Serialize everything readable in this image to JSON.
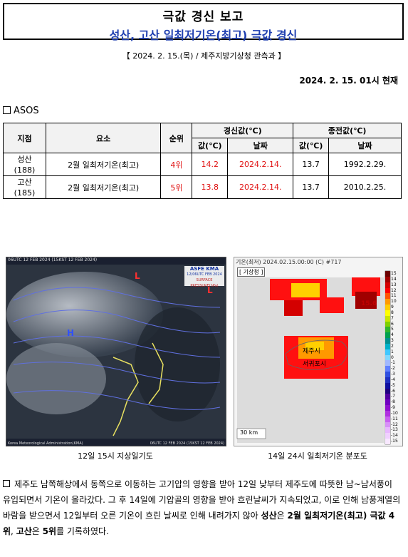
{
  "title": {
    "main": "극값 경신 보고",
    "sub": "성산, 고산 일최저기온(최고) 극값 경신"
  },
  "meta_line": "【 2024. 2. 15.(목) / 제주지방기상청 관측과 】",
  "timestamp": "2024. 2. 15. 01시 현재",
  "section_label": "ASOS",
  "table": {
    "headers": {
      "station": "지점",
      "element": "요소",
      "rank": "순위",
      "renewed": "경신값(℃)",
      "previous": "종전값(℃)",
      "value": "값(℃)",
      "date": "날짜"
    },
    "rows": [
      {
        "station_name": "성산",
        "station_code": "(188)",
        "element": "2월 일최저기온(최고)",
        "rank": "4위",
        "new_value": "14.2",
        "new_date": "2024.2.14.",
        "old_value": "13.7",
        "old_date": "1992.2.29."
      },
      {
        "station_name": "고산",
        "station_code": "(185)",
        "element": "2월 일최저기온(최고)",
        "rank": "5위",
        "new_value": "13.8",
        "new_date": "2024.2.14.",
        "old_value": "13.7",
        "old_date": "2010.2.25."
      }
    ]
  },
  "figure1": {
    "top_label": "06UTC 12 FEB 2024 (15KST 12 FEB 2024)",
    "badge_line1": "ASFE  KMA",
    "badge_line2": "12/06UTC FEB 2024",
    "badge_line3": "SURFACE PRESSURE(hPa)",
    "bottom_left": "Korea Meteorological Administration(KMA)",
    "bottom_right": "06UTC 12 FEB 2024 (15KST 12 FEB 2024)",
    "caption": "12일 15시 지상일기도"
  },
  "figure2": {
    "header": "기온(최저)  2024.02.15.00:00 (C) #717",
    "agency": "기상청",
    "label_jeju": "제주시",
    "label_seogwipo": "서귀포시",
    "max_label": "15.6",
    "scale": "30 km",
    "legend": [
      "15",
      "14",
      "13",
      "12",
      "11",
      "10",
      "9",
      "8",
      "7",
      "6",
      "5",
      "4",
      "3",
      "2",
      "1",
      "0",
      "-1",
      "-2",
      "-3",
      "-4",
      "-5",
      "-6",
      "-7",
      "-8",
      "-9",
      "-10",
      "-11",
      "-12",
      "-13",
      "-14",
      "-15"
    ],
    "legend_colors": [
      "#6b0000",
      "#a00000",
      "#d40000",
      "#ff0000",
      "#ff5500",
      "#ff9900",
      "#ffcc00",
      "#ffff00",
      "#c8e600",
      "#7fd000",
      "#2fb52f",
      "#00a050",
      "#009090",
      "#00b0c8",
      "#40c8ff",
      "#80d8ff",
      "#a0b8ff",
      "#6080ff",
      "#3050e0",
      "#2030c0",
      "#1010a0",
      "#200080",
      "#5000a0",
      "#7000c0",
      "#9010d0",
      "#b030e0",
      "#c860f0",
      "#d890f8",
      "#e8b8ff",
      "#f0d0ff",
      "#f8e8ff"
    ],
    "caption": "14일 24시 일최저기온 분포도"
  },
  "paragraph": {
    "part1": "제주도 남쪽해상에서 동쪽으로 이동하는 고기압의 영향을 받아 12일 낮부터 제주도에 따뜻한 남~남서풍이 유입되면서 기온이 올라갔다. 그 후 14일에 기압골의 영향을 받아 흐린날씨가 지속되었고, 이로 인해 남풍계열의 바람을 받으면서 12일부터 오른 기온이 흐린 날씨로 인해 내려가지 않아 ",
    "bold1": "성산",
    "part2": "은 ",
    "bold2": "2월 일최저기온(최고) 극값 4위",
    "part3": ", ",
    "bold3": "고산",
    "part4": "은 ",
    "bold4": "5위",
    "part5": "를 기록하였다."
  }
}
